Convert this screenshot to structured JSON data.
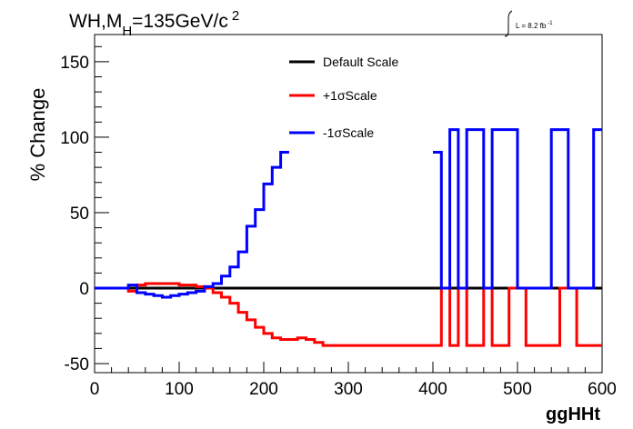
{
  "chart_data": {
    "type": "line",
    "title": "WH,M",
    "title_sub": "H",
    "title_rest": "=135GeV/c",
    "title_sup": "2",
    "lumi": "L = 8.2 fb",
    "lumi_sup": "-1",
    "xlabel": "ggHHt",
    "ylabel": "% Change",
    "xlim": [
      0,
      600
    ],
    "ylim": [
      -56,
      168
    ],
    "xticks": [
      "0",
      "100",
      "200",
      "300",
      "400",
      "500",
      "600"
    ],
    "yticks": [
      "-50",
      "0",
      "50",
      "100",
      "150"
    ],
    "legend_position": "top-center",
    "bin_edges": [
      0,
      10,
      20,
      30,
      40,
      50,
      60,
      70,
      80,
      90,
      100,
      110,
      120,
      130,
      140,
      150,
      160,
      170,
      180,
      190,
      200,
      210,
      220,
      230,
      240,
      250,
      260,
      270,
      280,
      290,
      300,
      310,
      320,
      330,
      340,
      350,
      360,
      370,
      380,
      390,
      400,
      410,
      420,
      430,
      440,
      450,
      460,
      470,
      480,
      490,
      500,
      510,
      520,
      530,
      540,
      550,
      560,
      570,
      580,
      590,
      600
    ],
    "series": [
      {
        "name": "Default Scale",
        "color": "#000000",
        "values": [
          0,
          0,
          0,
          0,
          0,
          0,
          0,
          0,
          0,
          0,
          0,
          0,
          0,
          0,
          0,
          0,
          0,
          0,
          0,
          0,
          0,
          0,
          0,
          0,
          0,
          0,
          0,
          0,
          0,
          0,
          0,
          0,
          0,
          0,
          0,
          0,
          0,
          0,
          0,
          0,
          0,
          0,
          0,
          0,
          0,
          0,
          0,
          0,
          0,
          0,
          0,
          0,
          0,
          0,
          0,
          0,
          0,
          0,
          0,
          0
        ]
      },
      {
        "name": "+1σScale",
        "color": "#ff0000",
        "values": [
          0,
          0,
          0,
          0,
          -2,
          2,
          3,
          3,
          3,
          3,
          2,
          2,
          1,
          0,
          -3,
          -6,
          -10,
          -16,
          -21,
          -26,
          -30,
          -33,
          -34,
          -34,
          -33,
          -34,
          -36,
          -38,
          -38,
          -38,
          -38,
          -38,
          -38,
          -38,
          -38,
          -38,
          -38,
          -38,
          -38,
          -38,
          -38,
          0,
          -38,
          0,
          -38,
          -38,
          0,
          -38,
          -38,
          0,
          0,
          -38,
          -38,
          -38,
          -38,
          0,
          0,
          -38,
          -38,
          -38
        ]
      },
      {
        "name": "-1σScale",
        "color": "#0000ff",
        "values": [
          0,
          0,
          0,
          0,
          2,
          -3,
          -4,
          -5,
          -6,
          -5,
          -4,
          -3,
          -2,
          1,
          3,
          8,
          14,
          24,
          41,
          52,
          69,
          80,
          90,
          null,
          null,
          null,
          null,
          null,
          null,
          null,
          null,
          null,
          null,
          null,
          null,
          null,
          null,
          null,
          null,
          null,
          90,
          0,
          105,
          0,
          105,
          105,
          0,
          105,
          105,
          105,
          0,
          0,
          0,
          0,
          105,
          105,
          0,
          0,
          0,
          105
        ]
      }
    ]
  }
}
